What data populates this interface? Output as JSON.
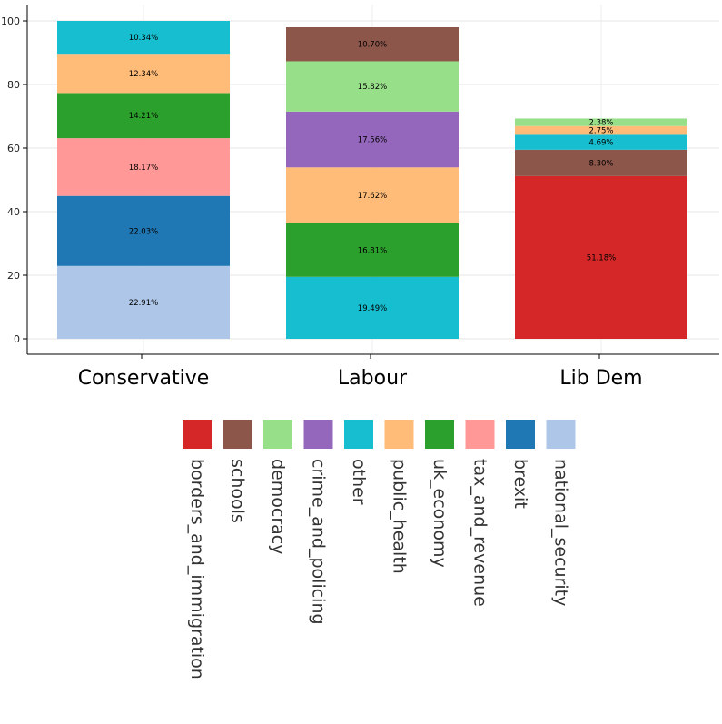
{
  "chart_data": {
    "type": "bar",
    "stacked": true,
    "categories": [
      "Conservative",
      "Labour",
      "Lib Dem"
    ],
    "ylim": [
      0,
      100
    ],
    "yticks": [
      0,
      20,
      40,
      60,
      80,
      100
    ],
    "grid": true,
    "legend_placement": "bottom",
    "series": [
      {
        "name": "national_security",
        "color": "#aec7e8",
        "values": [
          22.91,
          0,
          0
        ],
        "labels": [
          "22.91%",
          "",
          ""
        ]
      },
      {
        "name": "brexit",
        "color": "#1f77b4",
        "values": [
          22.03,
          0,
          0
        ],
        "labels": [
          "22.03%",
          "",
          ""
        ]
      },
      {
        "name": "tax_and_revenue",
        "color": "#ff9896",
        "values": [
          18.17,
          0,
          0
        ],
        "labels": [
          "18.17%",
          "",
          ""
        ]
      },
      {
        "name": "uk_economy",
        "color": "#2ca02c",
        "values": [
          14.21,
          16.81,
          0
        ],
        "labels": [
          "14.21%",
          "16.81%",
          ""
        ]
      },
      {
        "name": "public_health",
        "color": "#ffbb78",
        "values": [
          12.34,
          17.62,
          2.75
        ],
        "labels": [
          "12.34%",
          "17.62%",
          "2.75%"
        ]
      },
      {
        "name": "other",
        "color": "#17becf",
        "values": [
          10.34,
          19.49,
          4.69
        ],
        "labels": [
          "10.34%",
          "19.49%",
          "4.69%"
        ]
      },
      {
        "name": "crime_and_policing",
        "color": "#9467bd",
        "values": [
          0,
          17.56,
          0
        ],
        "labels": [
          "",
          "17.56%",
          ""
        ]
      },
      {
        "name": "democracy",
        "color": "#98df8a",
        "values": [
          0,
          15.82,
          2.38
        ],
        "labels": [
          "",
          "15.82%",
          "2.38%"
        ]
      },
      {
        "name": "schools",
        "color": "#8c564b",
        "values": [
          0,
          10.7,
          8.3
        ],
        "labels": [
          "",
          "10.70%",
          "8.30%"
        ]
      },
      {
        "name": "borders_and_immigration",
        "color": "#d62728",
        "values": [
          0,
          0,
          51.18
        ],
        "labels": [
          "",
          "",
          "51.18%"
        ]
      }
    ],
    "stack_order": [
      [
        "national_security",
        "brexit",
        "tax_and_revenue",
        "uk_economy",
        "public_health",
        "other"
      ],
      [
        "other",
        "uk_economy",
        "public_health",
        "crime_and_policing",
        "democracy",
        "schools"
      ],
      [
        "borders_and_immigration",
        "national_security",
        "schools",
        "other",
        "public_health",
        "democracy"
      ]
    ],
    "legend_order": [
      "borders_and_immigration",
      "schools",
      "democracy",
      "crime_and_policing",
      "other",
      "public_health",
      "uk_economy",
      "tax_and_revenue",
      "brexit",
      "national_security"
    ]
  }
}
